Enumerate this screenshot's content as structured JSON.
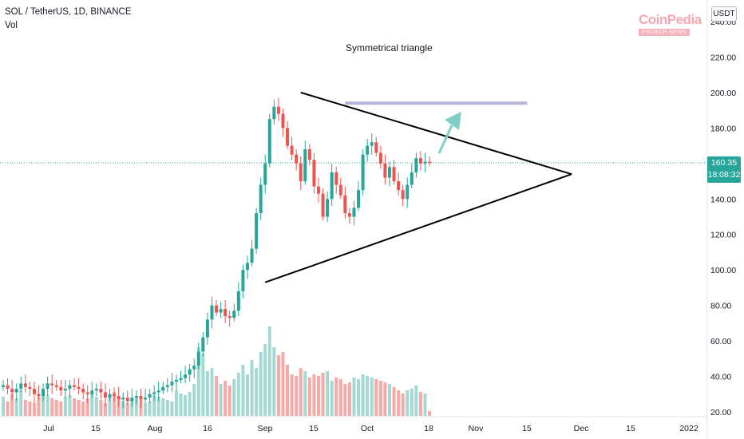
{
  "header": {
    "symbol": "SOL / TetherUS, 1D, BINANCE",
    "volume_label": "Vol"
  },
  "watermark": {
    "name": "CoinPedia",
    "tagline": "FINTECH NEWS"
  },
  "annotation": "Symmetrical triangle",
  "price_axis": {
    "unit": "USDT",
    "ticks": [
      "20.00",
      "40.00",
      "60.00",
      "80.00",
      "100.00",
      "120.00",
      "140.00",
      "160.00",
      "180.00",
      "200.00",
      "220.00",
      "240.00"
    ]
  },
  "last_price": {
    "price": "160.35",
    "countdown": "18:08:32"
  },
  "colors": {
    "up": "#26a69a",
    "down": "#ef5350",
    "vol_up": "#a3d9d2",
    "vol_down": "#f7a9a7",
    "resistance": "#b2b5d6",
    "arrow": "#7fcfc6",
    "line": "#000000"
  },
  "chart_data": {
    "type": "candlestick",
    "title": "",
    "xlabel": "",
    "ylabel": "",
    "x_tick_labels": [
      "Jul",
      "15",
      "Aug",
      "16",
      "Sep",
      "15",
      "Oct",
      "18",
      "Nov",
      "15",
      "Dec",
      "15",
      "2022"
    ],
    "ylim": [
      18,
      245
    ],
    "grid": false,
    "candles_close": [
      35,
      33,
      31,
      33,
      36,
      34,
      33,
      30,
      29,
      33,
      36,
      35,
      34,
      32,
      33,
      35,
      34,
      33,
      31,
      30,
      32,
      33,
      31,
      28,
      30,
      29,
      27,
      28,
      26,
      28,
      29,
      27,
      28,
      30,
      31,
      32,
      34,
      35,
      37,
      38,
      39,
      41,
      44,
      46,
      54,
      62,
      72,
      80,
      76,
      78,
      74,
      73,
      77,
      88,
      100,
      104,
      112,
      132,
      148,
      160,
      185,
      192,
      188,
      180,
      170,
      165,
      160,
      150,
      168,
      162,
      147,
      143,
      130,
      140,
      155,
      148,
      142,
      132,
      130,
      135,
      145,
      165,
      170,
      172,
      166,
      160,
      152,
      158,
      150,
      145,
      140,
      148,
      155,
      163,
      160,
      161,
      160.35
    ],
    "volume": {
      "ylim": [
        0,
        700
      ],
      "values": [
        120,
        90,
        140,
        110,
        160,
        100,
        90,
        80,
        120,
        150,
        130,
        110,
        100,
        90,
        120,
        130,
        110,
        100,
        90,
        110,
        140,
        120,
        100,
        80,
        130,
        150,
        100,
        90,
        80,
        110,
        120,
        100,
        80,
        90,
        130,
        120,
        110,
        100,
        90,
        160,
        140,
        130,
        150,
        200,
        430,
        390,
        280,
        300,
        250,
        200,
        220,
        190,
        230,
        270,
        320,
        260,
        350,
        300,
        400,
        450,
        560,
        430,
        380,
        400,
        320,
        260,
        250,
        300,
        280,
        240,
        260,
        250,
        270,
        280,
        220,
        240,
        230,
        200,
        210,
        240,
        230,
        260,
        250,
        240,
        230,
        220,
        210,
        200,
        180,
        160,
        140,
        160,
        170,
        190,
        150,
        140,
        30
      ]
    },
    "series": [
      {
        "name": "",
        "type": "trendline",
        "points": [
          [
            "2021-08-23",
            93
          ],
          [
            "2021-10-31",
            154
          ]
        ]
      },
      {
        "name": "",
        "type": "trendline",
        "points": [
          [
            "2021-08-31",
            200
          ],
          [
            "2021-10-31",
            154
          ]
        ]
      },
      {
        "name": "",
        "type": "resistance",
        "y": 194,
        "x_range": [
          "2021-09-10",
          "2021-10-21"
        ]
      }
    ]
  }
}
